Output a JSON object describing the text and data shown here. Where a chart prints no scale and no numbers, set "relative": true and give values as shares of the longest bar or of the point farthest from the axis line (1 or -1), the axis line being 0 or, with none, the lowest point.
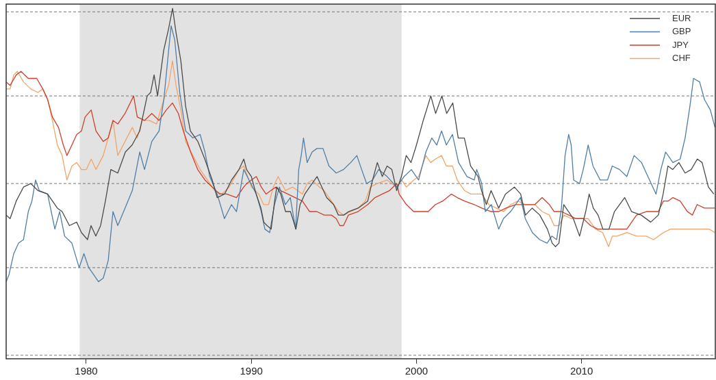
{
  "chart_data": {
    "type": "line",
    "relative": true,
    "legend": "top right",
    "xlim": [
      1975.15,
      2018.1
    ],
    "xticks": [
      1980,
      1990,
      2000,
      2010
    ],
    "bands": [
      {
        "axis": "x",
        "from": 1979.6,
        "to": 1999.1,
        "color": "#e2e2e2"
      }
    ],
    "ref_lines": [
      {
        "axis": "y",
        "value": 0.01,
        "color": "#777777",
        "line_style": "dashed"
      },
      {
        "axis": "y",
        "value": 0.26,
        "color": "#777777",
        "line_style": "dashed"
      },
      {
        "axis": "y",
        "value": 0.5,
        "color": "#777777",
        "line_style": "dashed"
      },
      {
        "axis": "y",
        "value": 0.75,
        "color": "#777777",
        "line_style": "dashed"
      },
      {
        "axis": "y",
        "value": 0.99,
        "color": "#777777",
        "line_style": "dashed"
      }
    ],
    "series": [
      {
        "name": "EUR",
        "color": "#4a4a4a",
        "x": [
          1975.15,
          1975.39,
          1975.76,
          1976.2,
          1976.64,
          1977.07,
          1977.66,
          1978.25,
          1978.54,
          1978.98,
          1979.42,
          1979.71,
          1980.08,
          1980.29,
          1980.58,
          1980.87,
          1981.16,
          1981.49,
          1981.91,
          1982.37,
          1982.78,
          1983.24,
          1983.69,
          1983.9,
          1984.11,
          1984.32,
          1984.69,
          1984.98,
          1985.23,
          1985.44,
          1985.73,
          1986.02,
          1986.31,
          1986.76,
          1987.18,
          1987.63,
          1987.93,
          1988.38,
          1988.8,
          1989.25,
          1989.54,
          1989.71,
          1990.0,
          1990.29,
          1990.58,
          1990.75,
          1990.95,
          1991.2,
          1991.41,
          1991.54,
          1991.78,
          1992.07,
          1992.37,
          1992.7,
          1992.95,
          1993.24,
          1993.53,
          1993.98,
          1994.27,
          1994.56,
          1994.98,
          1995.27,
          1995.6,
          1995.89,
          1996.47,
          1997.05,
          1997.34,
          1997.63,
          1997.93,
          1998.22,
          1998.51,
          1998.8,
          1999.09,
          1999.38,
          1999.67,
          2000.0,
          2000.41,
          2000.87,
          2001.16,
          2001.54,
          2001.83,
          2002.2,
          2002.53,
          2002.9,
          2003.28,
          2003.73,
          2003.94,
          2004.23,
          2004.52,
          2004.98,
          2005.39,
          2005.93,
          2006.31,
          2006.6,
          2007.01,
          2007.47,
          2007.93,
          2008.22,
          2008.42,
          2008.63,
          2008.92,
          2009.21,
          2009.5,
          2009.88,
          2010.25,
          2010.46,
          2010.71,
          2011.0,
          2011.29,
          2011.66,
          2011.99,
          2012.61,
          2013.03,
          2013.61,
          2014.19,
          2014.65,
          2014.94,
          2015.23,
          2015.52,
          2015.89,
          2016.27,
          2016.64,
          2017.01,
          2017.3,
          2017.68,
          2018.01
        ],
        "values": [
          0.41,
          0.4,
          0.45,
          0.49,
          0.5,
          0.48,
          0.47,
          0.43,
          0.42,
          0.38,
          0.39,
          0.36,
          0.34,
          0.38,
          0.35,
          0.38,
          0.45,
          0.54,
          0.53,
          0.59,
          0.61,
          0.65,
          0.75,
          0.76,
          0.81,
          0.75,
          0.88,
          0.94,
          1.0,
          0.93,
          0.85,
          0.72,
          0.65,
          0.62,
          0.57,
          0.51,
          0.46,
          0.47,
          0.51,
          0.54,
          0.57,
          0.54,
          0.52,
          0.47,
          0.43,
          0.39,
          0.38,
          0.37,
          0.45,
          0.49,
          0.47,
          0.42,
          0.42,
          0.37,
          0.44,
          0.47,
          0.49,
          0.52,
          0.49,
          0.46,
          0.44,
          0.41,
          0.41,
          0.42,
          0.43,
          0.45,
          0.51,
          0.56,
          0.52,
          0.55,
          0.54,
          0.48,
          0.52,
          0.58,
          0.56,
          0.61,
          0.68,
          0.75,
          0.7,
          0.75,
          0.7,
          0.73,
          0.63,
          0.63,
          0.55,
          0.52,
          0.48,
          0.44,
          0.48,
          0.43,
          0.47,
          0.49,
          0.47,
          0.41,
          0.43,
          0.41,
          0.37,
          0.33,
          0.32,
          0.33,
          0.44,
          0.42,
          0.4,
          0.35,
          0.42,
          0.47,
          0.43,
          0.41,
          0.37,
          0.37,
          0.42,
          0.46,
          0.42,
          0.41,
          0.39,
          0.41,
          0.47,
          0.55,
          0.54,
          0.56,
          0.53,
          0.54,
          0.57,
          0.56,
          0.49,
          0.47
        ]
      },
      {
        "name": "GBP",
        "color": "#4f7ea8",
        "x": [
          1975.15,
          1975.32,
          1975.61,
          1975.9,
          1976.2,
          1976.49,
          1976.71,
          1976.93,
          1977.15,
          1977.66,
          1978.1,
          1978.39,
          1978.69,
          1979.13,
          1979.57,
          1979.86,
          1980.15,
          1980.45,
          1980.74,
          1981.03,
          1981.33,
          1981.62,
          1981.91,
          1982.35,
          1982.79,
          1983.24,
          1983.53,
          1983.97,
          1984.41,
          1984.7,
          1984.99,
          1985.14,
          1985.36,
          1985.66,
          1986.02,
          1986.46,
          1986.9,
          1987.19,
          1987.48,
          1987.93,
          1988.37,
          1988.8,
          1989.1,
          1989.54,
          1989.86,
          1990.3,
          1990.6,
          1990.82,
          1991.11,
          1991.4,
          1991.7,
          1992.06,
          1992.36,
          1992.68,
          1992.87,
          1993.02,
          1993.16,
          1993.38,
          1993.68,
          1993.97,
          1994.34,
          1994.7,
          1995.14,
          1995.58,
          1996.02,
          1996.39,
          1996.68,
          1996.98,
          1997.34,
          1997.71,
          1998.22,
          1998.81,
          1999.25,
          1999.69,
          2000.13,
          2000.57,
          2000.93,
          2001.23,
          2001.52,
          2001.81,
          2002.18,
          2002.55,
          2003.06,
          2003.5,
          2003.65,
          2003.95,
          2004.17,
          2004.53,
          2004.98,
          2005.27,
          2005.7,
          2006.3,
          2006.59,
          2007.02,
          2007.46,
          2007.91,
          2008.2,
          2008.49,
          2008.78,
          2009.0,
          2009.22,
          2009.37,
          2009.52,
          2009.88,
          2010.1,
          2010.4,
          2010.69,
          2011.13,
          2011.57,
          2011.86,
          2012.3,
          2012.74,
          2013.18,
          2013.63,
          2013.92,
          2014.51,
          2014.8,
          2015.09,
          2015.53,
          2015.97,
          2016.27,
          2016.56,
          2016.78,
          2017.15,
          2017.44,
          2017.8,
          2018.08
        ],
        "values": [
          0.22,
          0.24,
          0.3,
          0.33,
          0.34,
          0.42,
          0.45,
          0.51,
          0.48,
          0.47,
          0.37,
          0.42,
          0.35,
          0.33,
          0.26,
          0.3,
          0.26,
          0.24,
          0.22,
          0.23,
          0.28,
          0.42,
          0.38,
          0.43,
          0.48,
          0.59,
          0.54,
          0.62,
          0.65,
          0.74,
          0.88,
          0.95,
          0.91,
          0.76,
          0.65,
          0.63,
          0.64,
          0.59,
          0.52,
          0.47,
          0.4,
          0.44,
          0.42,
          0.54,
          0.51,
          0.47,
          0.42,
          0.37,
          0.36,
          0.44,
          0.49,
          0.44,
          0.46,
          0.37,
          0.54,
          0.58,
          0.63,
          0.56,
          0.59,
          0.6,
          0.6,
          0.55,
          0.53,
          0.54,
          0.56,
          0.58,
          0.54,
          0.5,
          0.51,
          0.54,
          0.52,
          0.49,
          0.52,
          0.54,
          0.51,
          0.59,
          0.63,
          0.61,
          0.65,
          0.61,
          0.64,
          0.56,
          0.52,
          0.51,
          0.54,
          0.5,
          0.42,
          0.44,
          0.37,
          0.4,
          0.42,
          0.46,
          0.4,
          0.36,
          0.34,
          0.33,
          0.35,
          0.34,
          0.43,
          0.58,
          0.64,
          0.61,
          0.51,
          0.5,
          0.54,
          0.61,
          0.55,
          0.51,
          0.51,
          0.55,
          0.54,
          0.52,
          0.58,
          0.56,
          0.53,
          0.47,
          0.54,
          0.59,
          0.56,
          0.57,
          0.63,
          0.72,
          0.8,
          0.79,
          0.74,
          0.71,
          0.66
        ]
      },
      {
        "name": "JPY",
        "color": "#cf3f2a",
        "x": [
          1975.15,
          1975.39,
          1975.76,
          1976.05,
          1976.49,
          1977.0,
          1977.37,
          1977.66,
          1977.95,
          1978.32,
          1978.61,
          1978.83,
          1979.13,
          1979.42,
          1979.71,
          1979.93,
          1980.3,
          1980.59,
          1981.03,
          1981.33,
          1981.62,
          1981.91,
          1982.35,
          1982.87,
          1983.09,
          1983.53,
          1983.97,
          1984.41,
          1984.85,
          1985.22,
          1985.58,
          1985.88,
          1986.32,
          1986.75,
          1987.19,
          1987.63,
          1988.08,
          1988.51,
          1989.1,
          1989.54,
          1989.72,
          1990.3,
          1990.6,
          1990.89,
          1991.18,
          1991.48,
          1991.77,
          1992.21,
          1992.65,
          1993.09,
          1993.53,
          1993.97,
          1994.41,
          1994.85,
          1995.14,
          1995.36,
          1995.58,
          1995.88,
          1996.46,
          1997.05,
          1997.49,
          1997.93,
          1998.37,
          1998.81,
          1998.95,
          1999.39,
          1999.83,
          2000.27,
          2000.71,
          2001.15,
          2001.59,
          2002.11,
          2002.47,
          2002.91,
          2003.5,
          2003.95,
          2004.53,
          2004.98,
          2005.42,
          2006.0,
          2006.59,
          2007.17,
          2007.61,
          2008.05,
          2008.34,
          2008.78,
          2009.22,
          2009.66,
          2010.1,
          2010.54,
          2010.98,
          2011.57,
          2012.16,
          2012.74,
          2013.33,
          2013.92,
          2014.65,
          2014.95,
          2015.24,
          2015.53,
          2015.97,
          2016.41,
          2016.71,
          2017.0,
          2017.44,
          2017.88,
          2018.08
        ],
        "values": [
          0.79,
          0.78,
          0.81,
          0.82,
          0.8,
          0.8,
          0.77,
          0.74,
          0.69,
          0.66,
          0.61,
          0.58,
          0.61,
          0.64,
          0.65,
          0.69,
          0.71,
          0.65,
          0.62,
          0.63,
          0.68,
          0.67,
          0.7,
          0.75,
          0.69,
          0.68,
          0.7,
          0.68,
          0.71,
          0.73,
          0.7,
          0.65,
          0.59,
          0.54,
          0.51,
          0.49,
          0.47,
          0.47,
          0.46,
          0.49,
          0.5,
          0.52,
          0.49,
          0.47,
          0.48,
          0.49,
          0.48,
          0.47,
          0.46,
          0.45,
          0.42,
          0.42,
          0.41,
          0.41,
          0.4,
          0.38,
          0.38,
          0.41,
          0.42,
          0.44,
          0.46,
          0.47,
          0.48,
          0.5,
          0.47,
          0.44,
          0.42,
          0.42,
          0.42,
          0.44,
          0.45,
          0.47,
          0.46,
          0.45,
          0.44,
          0.43,
          0.42,
          0.42,
          0.43,
          0.44,
          0.44,
          0.44,
          0.46,
          0.44,
          0.42,
          0.42,
          0.41,
          0.4,
          0.4,
          0.38,
          0.37,
          0.37,
          0.37,
          0.37,
          0.41,
          0.42,
          0.42,
          0.45,
          0.45,
          0.46,
          0.45,
          0.42,
          0.41,
          0.44,
          0.43,
          0.43,
          0.43
        ]
      },
      {
        "name": "CHF",
        "color": "#f2a468",
        "x": [
          1975.15,
          1975.39,
          1975.61,
          1975.83,
          1976.2,
          1976.64,
          1977.07,
          1977.37,
          1977.66,
          1977.95,
          1978.25,
          1978.54,
          1978.83,
          1979.13,
          1979.42,
          1979.71,
          1980.01,
          1980.3,
          1980.59,
          1981.03,
          1981.33,
          1981.62,
          1981.91,
          1982.35,
          1982.79,
          1983.09,
          1983.38,
          1983.82,
          1984.26,
          1984.7,
          1984.99,
          1985.22,
          1985.44,
          1985.73,
          1986.02,
          1986.46,
          1986.9,
          1987.34,
          1987.78,
          1988.22,
          1988.66,
          1989.25,
          1989.54,
          1990.01,
          1990.45,
          1990.74,
          1991.04,
          1991.33,
          1991.62,
          1992.06,
          1992.5,
          1992.8,
          1993.09,
          1993.38,
          1993.68,
          1994.12,
          1994.41,
          1994.85,
          1995.29,
          1995.58,
          1996.02,
          1996.46,
          1996.9,
          1997.2,
          1997.63,
          1998.22,
          1998.81,
          1999.1,
          1999.39,
          1999.83,
          2000.13,
          2000.57,
          2000.86,
          2001.15,
          2001.52,
          2001.81,
          2002.18,
          2002.47,
          2002.91,
          2003.28,
          2003.65,
          2003.95,
          2004.39,
          2004.83,
          2005.27,
          2005.71,
          2006.15,
          2006.59,
          2007.17,
          2007.61,
          2008.05,
          2008.34,
          2008.64,
          2008.93,
          2009.37,
          2009.81,
          2010.4,
          2010.84,
          2011.28,
          2011.64,
          2011.86,
          2012.16,
          2012.74,
          2013.33,
          2013.92,
          2014.36,
          2014.95,
          2015.39,
          2015.97,
          2016.56,
          2017.15,
          2017.73,
          2018.08
        ],
        "values": [
          0.77,
          0.77,
          0.81,
          0.82,
          0.79,
          0.77,
          0.76,
          0.77,
          0.74,
          0.68,
          0.61,
          0.58,
          0.51,
          0.55,
          0.56,
          0.54,
          0.54,
          0.57,
          0.54,
          0.58,
          0.63,
          0.68,
          0.58,
          0.62,
          0.66,
          0.63,
          0.68,
          0.68,
          0.67,
          0.74,
          0.78,
          0.85,
          0.78,
          0.71,
          0.62,
          0.58,
          0.54,
          0.51,
          0.48,
          0.47,
          0.49,
          0.54,
          0.55,
          0.49,
          0.47,
          0.44,
          0.44,
          0.49,
          0.52,
          0.48,
          0.49,
          0.48,
          0.47,
          0.5,
          0.51,
          0.49,
          0.48,
          0.45,
          0.42,
          0.41,
          0.42,
          0.43,
          0.45,
          0.49,
          0.5,
          0.51,
          0.49,
          0.51,
          0.49,
          0.51,
          0.52,
          0.58,
          0.56,
          0.57,
          0.58,
          0.55,
          0.55,
          0.51,
          0.48,
          0.47,
          0.47,
          0.47,
          0.44,
          0.43,
          0.42,
          0.44,
          0.45,
          0.44,
          0.44,
          0.42,
          0.41,
          0.38,
          0.38,
          0.41,
          0.4,
          0.4,
          0.4,
          0.37,
          0.36,
          0.32,
          0.35,
          0.35,
          0.36,
          0.35,
          0.35,
          0.34,
          0.36,
          0.37,
          0.37,
          0.37,
          0.37,
          0.37,
          0.36
        ]
      }
    ]
  }
}
